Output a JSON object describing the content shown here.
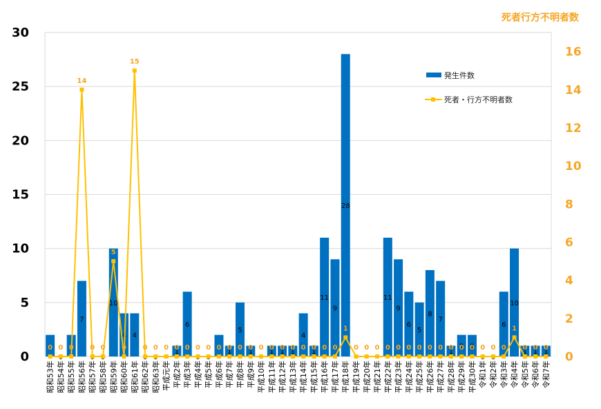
{
  "chart_data": {
    "type": "bar",
    "y_right_label": "死者行方不明者数",
    "ylim_left": [
      0,
      30
    ],
    "yticks_left": [
      0,
      5,
      10,
      15,
      20,
      25,
      30
    ],
    "ylim_right": [
      0,
      17
    ],
    "yticks_right": [
      0,
      2,
      4,
      6,
      8,
      10,
      12,
      14,
      16
    ],
    "grid": true,
    "legend_position": "top-right",
    "categories": [
      "昭和53年",
      "昭和54年",
      "昭和55年",
      "昭和56年",
      "昭和57年",
      "昭和58年",
      "昭和59年",
      "昭和60年",
      "昭和61年",
      "昭和62年",
      "昭和63年",
      "平成元年",
      "平成2年",
      "平成3年",
      "平成4年",
      "平成5年",
      "平成6年",
      "平成7年",
      "平成8年",
      "平成9年",
      "平成10年",
      "平成11年",
      "平成12年",
      "平成13年",
      "平成14年",
      "平成15年",
      "平成16年",
      "平成17年",
      "平成18年",
      "平成19年",
      "平成20年",
      "平成21年",
      "平成22年",
      "平成23年",
      "平成24年",
      "平成25年",
      "平成26年",
      "平成27年",
      "平成28年",
      "平成29年",
      "平成30年",
      "令和1年",
      "令和2年",
      "令和3年",
      "令和4年",
      "令和5年",
      "令和6年",
      "令和7年"
    ],
    "series": [
      {
        "name": "発生件数",
        "type": "bar",
        "axis": "left",
        "color": "#0070c0",
        "values": [
          2,
          0,
          2,
          7,
          0,
          0,
          10,
          4,
          4,
          0,
          0,
          0,
          1,
          6,
          0,
          0,
          2,
          1,
          5,
          1,
          0,
          1,
          1,
          1,
          4,
          1,
          11,
          9,
          28,
          0,
          0,
          0,
          11,
          9,
          6,
          5,
          8,
          7,
          1,
          2,
          2,
          0,
          0,
          6,
          10,
          1,
          1,
          1
        ],
        "labels": [
          "",
          "0",
          "",
          "7",
          "0",
          "0",
          "10",
          "4",
          "4",
          "0",
          "0",
          "",
          "1",
          "6",
          "0",
          "0",
          "",
          "1",
          "5",
          "1",
          "",
          "1",
          "1",
          "1",
          "4",
          "1",
          "11",
          "9",
          "28",
          "",
          "",
          "",
          "11",
          "9",
          "6",
          "5",
          "8",
          "7",
          "1",
          "2",
          "2",
          "0",
          "0",
          "6",
          "10",
          "1",
          "1",
          "1"
        ]
      },
      {
        "name": "死者・行方不明者数",
        "type": "line",
        "axis": "right",
        "color": "#ffc000",
        "values": [
          0,
          0,
          0,
          14,
          0,
          0,
          5,
          0,
          15,
          0,
          0,
          0,
          0,
          0,
          0,
          0,
          0,
          0,
          0,
          0,
          0,
          0,
          0,
          0,
          0,
          0,
          0,
          0,
          1,
          0,
          0,
          0,
          0,
          0,
          0,
          0,
          0,
          0,
          0,
          0,
          0,
          0,
          0,
          0,
          1,
          0,
          0,
          0
        ],
        "labels": [
          "0",
          "0",
          "0",
          "14",
          "0",
          "0",
          "5",
          "0",
          "15",
          "0",
          "0",
          "0",
          "0",
          "0",
          "0",
          "0",
          "0",
          "0",
          "0",
          "0",
          "0",
          "0",
          "0",
          "0",
          "0",
          "0",
          "0",
          "0",
          "1",
          "0",
          "0",
          "0",
          "0",
          "0",
          "0",
          "0",
          "0",
          "0",
          "0",
          "0",
          "0",
          "0",
          "0",
          "0",
          "1",
          "0",
          "0",
          "0"
        ]
      }
    ]
  }
}
